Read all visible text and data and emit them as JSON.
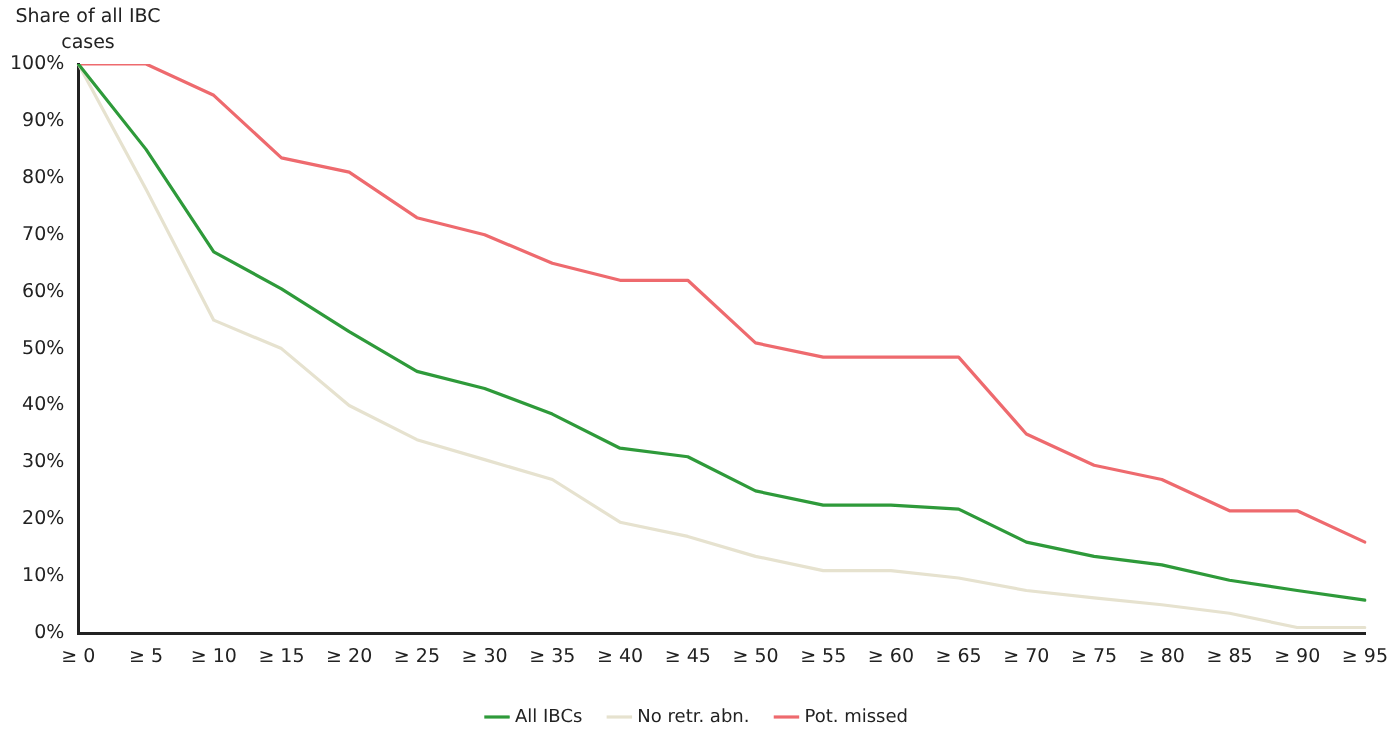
{
  "chart_data": {
    "type": "line",
    "ylabel": "Share of all IBC cases",
    "categories": [
      "≥ 0",
      "≥ 5",
      "≥ 10",
      "≥ 15",
      "≥ 20",
      "≥ 25",
      "≥ 30",
      "≥ 35",
      "≥ 40",
      "≥ 45",
      "≥ 50",
      "≥ 55",
      "≥ 60",
      "≥ 65",
      "≥ 70",
      "≥ 75",
      "≥ 80",
      "≥ 85",
      "≥ 90",
      "≥ 95"
    ],
    "series": [
      {
        "name": "All IBCs",
        "color": "#2e9a3a",
        "values": [
          100,
          85,
          67,
          60.5,
          53,
          46,
          43,
          38.5,
          32.5,
          31,
          25,
          22.5,
          22.5,
          21.8,
          16,
          13.5,
          12,
          9.3,
          7.5,
          5.8
        ]
      },
      {
        "name": "No retr. abn.",
        "color": "#e6e2cf",
        "values": [
          100,
          78,
          55,
          50,
          40,
          34,
          30.5,
          27,
          19.5,
          17,
          13.5,
          11,
          11,
          9.7,
          7.5,
          6.2,
          5,
          3.5,
          1,
          1
        ]
      },
      {
        "name": "Pot. missed",
        "color": "#ee6a6e",
        "values": [
          100,
          100,
          94.5,
          83.5,
          81,
          73,
          70,
          65,
          62,
          62,
          51,
          48.5,
          48.5,
          48.5,
          35,
          29.5,
          27,
          21.5,
          21.5,
          16
        ]
      }
    ],
    "ylim": [
      0,
      100
    ],
    "yticks": [
      {
        "value": 0,
        "label": "0%"
      },
      {
        "value": 10,
        "label": "10%"
      },
      {
        "value": 20,
        "label": "20%"
      },
      {
        "value": 30,
        "label": "30%"
      },
      {
        "value": 40,
        "label": "40%"
      },
      {
        "value": 50,
        "label": "50%"
      },
      {
        "value": 60,
        "label": "60%"
      },
      {
        "value": 70,
        "label": "70%"
      },
      {
        "value": 80,
        "label": "80%"
      },
      {
        "value": 90,
        "label": "90%"
      },
      {
        "value": 100,
        "label": "100%"
      }
    ],
    "grid": false,
    "legend": "bottom",
    "marker": "none",
    "line_style": "solid"
  }
}
